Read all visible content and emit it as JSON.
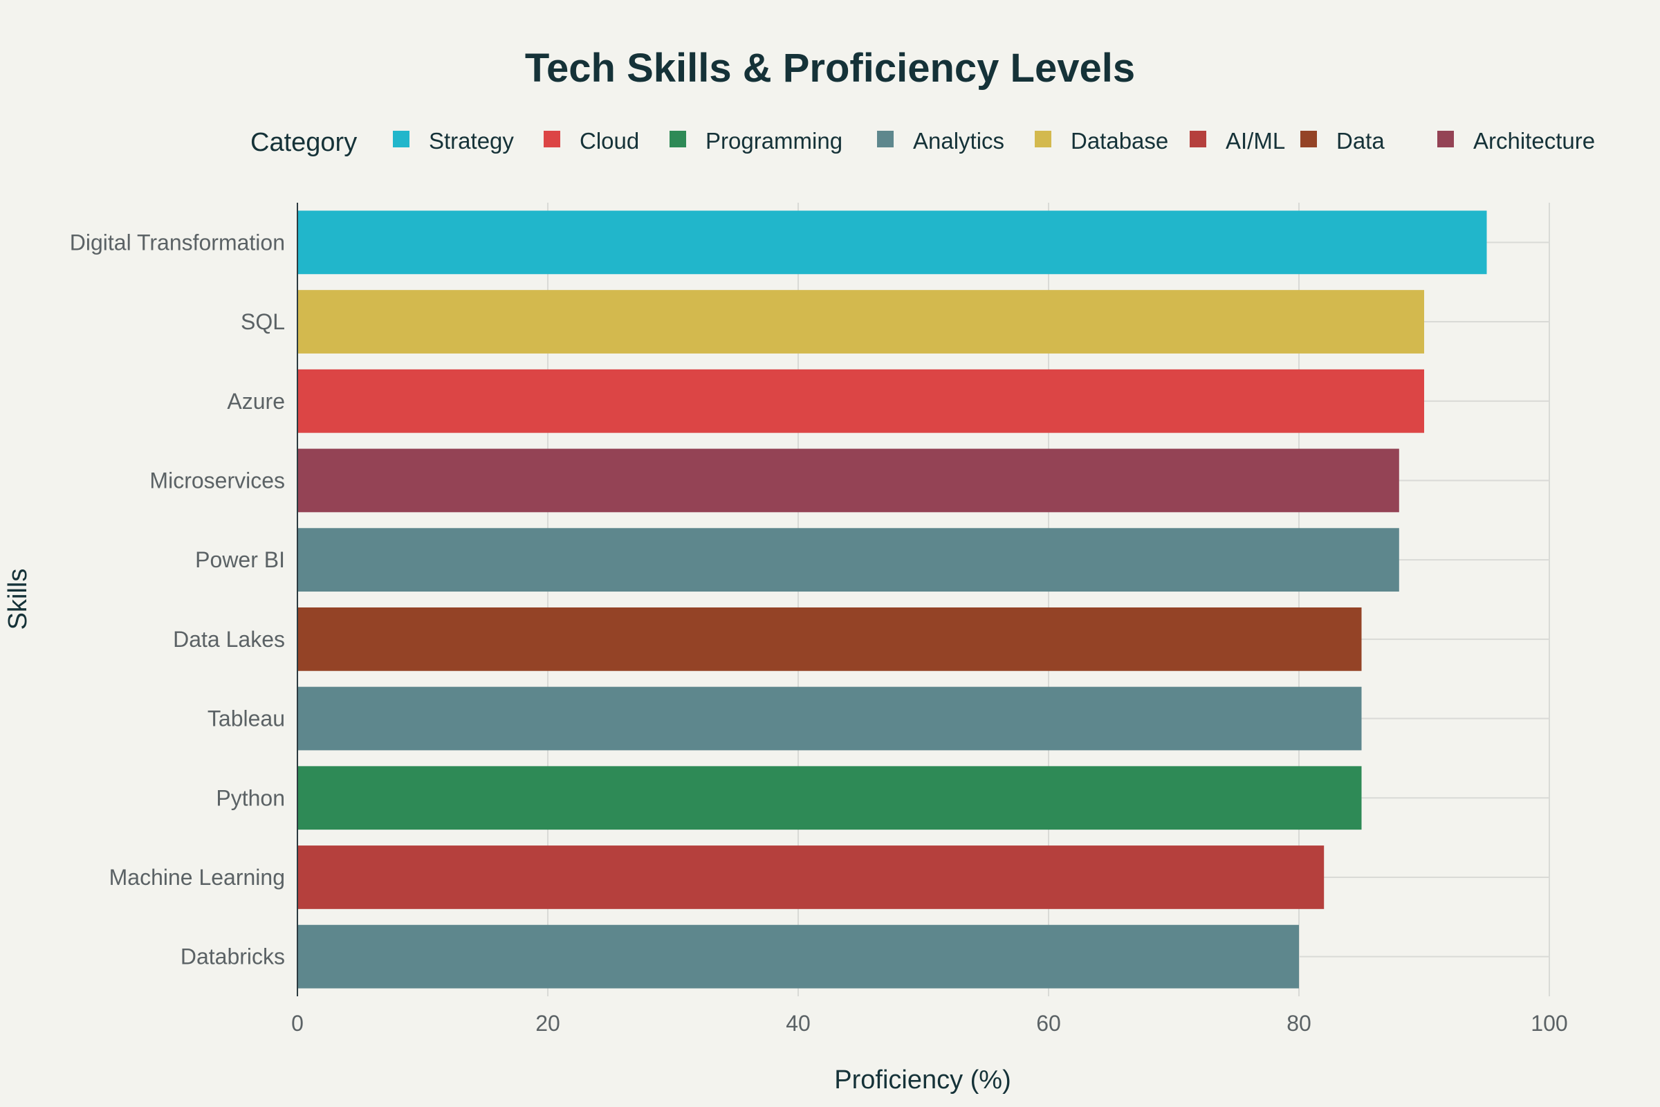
{
  "chart_data": {
    "type": "bar",
    "orientation": "horizontal",
    "title": "Tech Skills & Proficiency Levels",
    "xlabel": "Proficiency (%)",
    "ylabel": "Skills",
    "xlim": [
      0,
      100
    ],
    "xticks": [
      "0",
      "20",
      "40",
      "60",
      "80",
      "100"
    ],
    "grid": true,
    "legend": {
      "title": "Category",
      "placement": "top",
      "entries": [
        {
          "name": "Strategy",
          "color": "#21b6cb"
        },
        {
          "name": "Cloud",
          "color": "#dc4545"
        },
        {
          "name": "Programming",
          "color": "#2e8a56"
        },
        {
          "name": "Analytics",
          "color": "#5e878d"
        },
        {
          "name": "Database",
          "color": "#d3b94e"
        },
        {
          "name": "AI/ML",
          "color": "#b5403d"
        },
        {
          "name": "Data",
          "color": "#944326"
        },
        {
          "name": "Architecture",
          "color": "#944355"
        }
      ]
    },
    "bars": [
      {
        "label": "Digital Transformation",
        "value": 95,
        "category": "Strategy"
      },
      {
        "label": "SQL",
        "value": 90,
        "category": "Database"
      },
      {
        "label": "Azure",
        "value": 90,
        "category": "Cloud"
      },
      {
        "label": "Microservices",
        "value": 88,
        "category": "Architecture"
      },
      {
        "label": "Power BI",
        "value": 88,
        "category": "Analytics"
      },
      {
        "label": "Data Lakes",
        "value": 85,
        "category": "Data"
      },
      {
        "label": "Tableau",
        "value": 85,
        "category": "Analytics"
      },
      {
        "label": "Python",
        "value": 85,
        "category": "Programming"
      },
      {
        "label": "Machine Learning",
        "value": 82,
        "category": "AI/ML"
      },
      {
        "label": "Databricks",
        "value": 80,
        "category": "Analytics"
      }
    ]
  }
}
